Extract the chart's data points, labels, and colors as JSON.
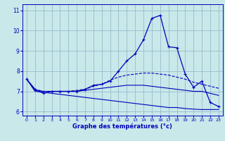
{
  "xlabel": "Graphe des températures (°c)",
  "bg_color": "#c8e8ea",
  "grid_color": "#99bbcc",
  "line_color": "#0000bb",
  "hours": [
    0,
    1,
    2,
    3,
    4,
    5,
    6,
    7,
    8,
    9,
    10,
    11,
    12,
    13,
    14,
    15,
    16,
    17,
    18,
    19,
    20,
    21,
    22,
    23
  ],
  "curve1": [
    7.6,
    7.1,
    6.9,
    7.0,
    7.0,
    7.0,
    7.0,
    7.1,
    7.3,
    7.35,
    7.5,
    8.0,
    8.5,
    8.85,
    9.55,
    10.6,
    10.75,
    9.2,
    9.15,
    7.85,
    7.2,
    7.5,
    6.45,
    6.25
  ],
  "curve2": [
    7.6,
    7.1,
    7.0,
    7.0,
    7.0,
    7.0,
    7.05,
    7.1,
    7.25,
    7.35,
    7.55,
    7.7,
    7.8,
    7.85,
    7.9,
    7.9,
    7.85,
    7.8,
    7.7,
    7.6,
    7.45,
    7.35,
    7.25,
    7.15
  ],
  "curve3": [
    7.6,
    7.05,
    7.0,
    7.0,
    7.0,
    7.0,
    7.0,
    7.05,
    7.1,
    7.15,
    7.2,
    7.25,
    7.3,
    7.3,
    7.3,
    7.25,
    7.2,
    7.15,
    7.1,
    7.05,
    7.0,
    7.0,
    6.9,
    6.8
  ],
  "curve4": [
    7.6,
    7.0,
    6.95,
    6.9,
    6.85,
    6.8,
    6.75,
    6.7,
    6.65,
    6.6,
    6.55,
    6.5,
    6.45,
    6.4,
    6.35,
    6.3,
    6.25,
    6.2,
    6.2,
    6.15,
    6.12,
    6.1,
    6.1,
    6.1
  ],
  "ylim": [
    5.8,
    11.3
  ],
  "yticks": [
    6,
    7,
    8,
    9,
    10,
    11
  ],
  "xlim": [
    -0.5,
    23.5
  ]
}
